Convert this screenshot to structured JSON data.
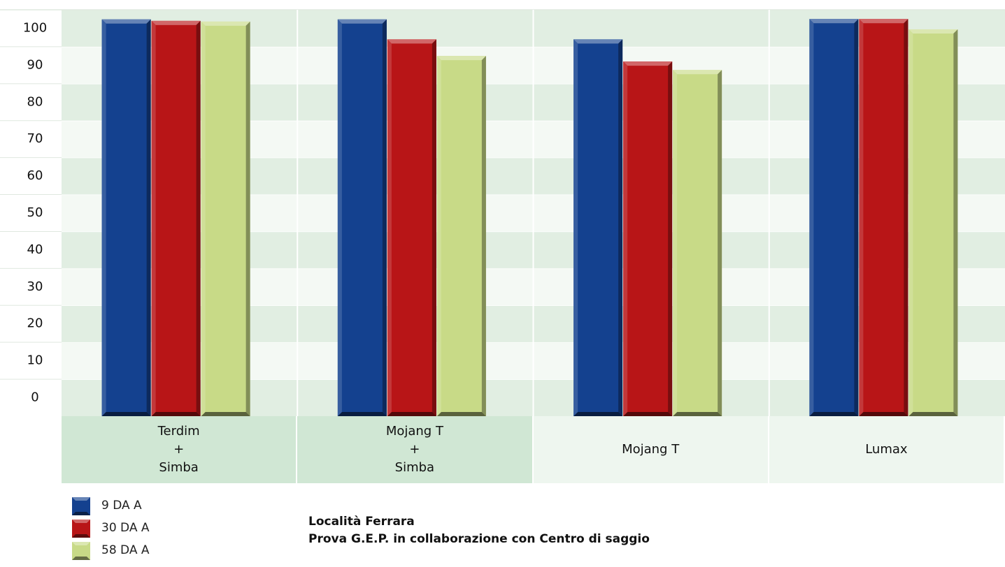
{
  "chart_data": {
    "type": "bar",
    "categories": [
      "Terdim\n+\nSimba",
      "Mojang T\n+\nSimba",
      "Mojang T",
      "Lumax"
    ],
    "series": [
      {
        "name": "9 DA A",
        "color": "#14418f",
        "values": [
          102.4,
          102.4,
          97,
          102.5
        ]
      },
      {
        "name": "30 DA A",
        "color": "#b81517",
        "values": [
          102,
          97,
          91,
          102.5
        ]
      },
      {
        "name": "58 DA A",
        "color": "#c8da87",
        "values": [
          101.8,
          92.5,
          88.7,
          99.7
        ]
      }
    ],
    "ylim": [
      -5,
      105
    ],
    "yticks": [
      0,
      10,
      20,
      30,
      40,
      50,
      60,
      70,
      80,
      90,
      100
    ],
    "legend": "bottom-left",
    "annotations": [
      "Località Ferrara",
      "Prova G.E.P. in collaborazione con Centro di saggio"
    ]
  }
}
